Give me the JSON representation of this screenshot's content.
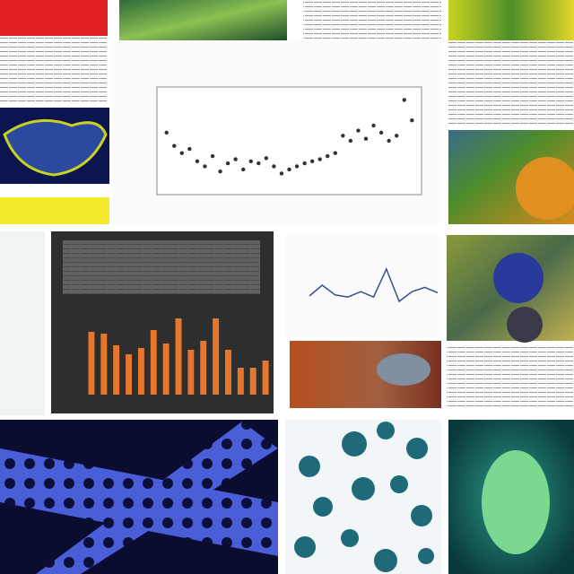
{
  "chart_data": [
    {
      "type": "scatter",
      "color": "#333333",
      "grid": true,
      "x": [
        2,
        5,
        8,
        11,
        14,
        17,
        20,
        23,
        26,
        29,
        32,
        35,
        38,
        41,
        44,
        47,
        50,
        53,
        56,
        59,
        62,
        65,
        68,
        71,
        74,
        77,
        80,
        83,
        86,
        89,
        92,
        95,
        98
      ],
      "values": [
        58,
        45,
        38,
        42,
        30,
        25,
        35,
        20,
        28,
        32,
        22,
        30,
        28,
        33,
        25,
        18,
        22,
        25,
        28,
        30,
        32,
        35,
        38,
        55,
        50,
        60,
        52,
        65,
        58,
        50,
        55,
        90,
        70
      ],
      "xlim": [
        0,
        100
      ],
      "ylim": [
        0,
        100
      ]
    },
    {
      "type": "bar",
      "color": "#e8772e",
      "values": [
        70,
        68,
        55,
        45,
        52,
        72,
        57,
        85,
        50,
        60,
        85,
        50,
        30,
        30,
        38
      ],
      "ylim": [
        0,
        100
      ]
    },
    {
      "type": "line",
      "color": "#3a4c8c",
      "values": [
        20,
        40,
        22,
        18,
        28,
        18,
        70,
        10,
        28,
        36,
        26
      ],
      "ylim": [
        0,
        100
      ]
    }
  ]
}
